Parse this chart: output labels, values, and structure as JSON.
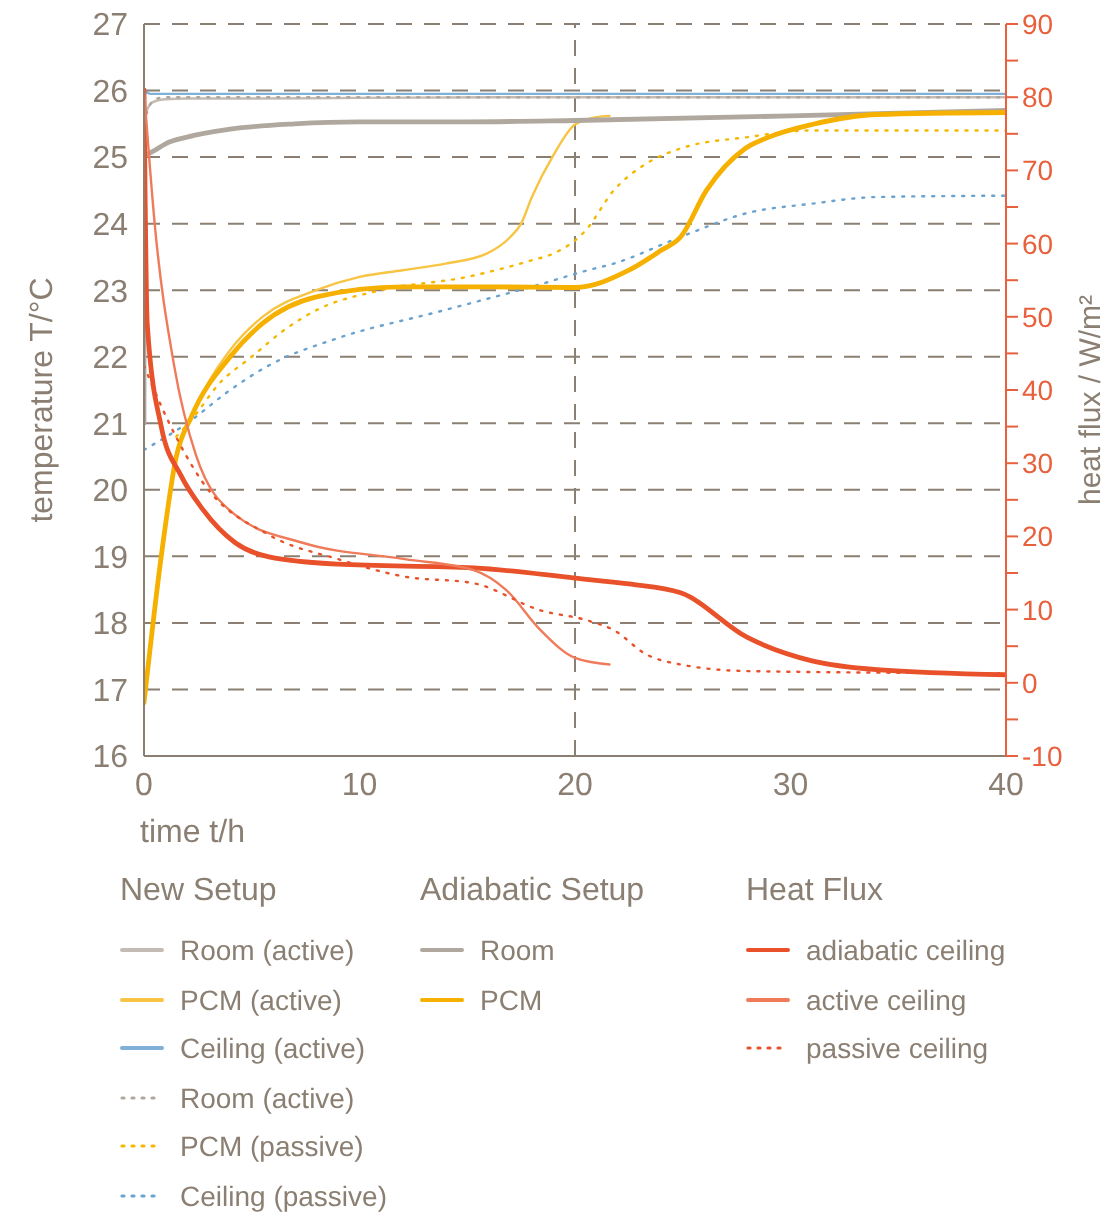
{
  "chart_data": {
    "type": "line",
    "xlabel": "time t/h",
    "ylabel": "temperature T/°C",
    "y2label": "heat flux / W/m²",
    "xlim": [
      0,
      40
    ],
    "xticks": [
      0,
      10,
      20,
      30,
      40
    ],
    "ylim": [
      16,
      27
    ],
    "yticks": [
      16,
      17,
      18,
      19,
      20,
      21,
      22,
      23,
      24,
      25,
      26,
      27
    ],
    "y2lim": [
      -10,
      90
    ],
    "y2ticks": [
      -10,
      {
        "value": -5,
        "label": null
      },
      0,
      {
        "value": 5,
        "label": null
      },
      10,
      {
        "value": 15,
        "label": null
      },
      20,
      {
        "value": 25,
        "label": null
      },
      30,
      {
        "value": 35,
        "label": null
      },
      40,
      {
        "value": 45,
        "label": null
      },
      50,
      {
        "value": 55,
        "label": null
      },
      60,
      {
        "value": 65,
        "label": null
      },
      70,
      {
        "value": 75,
        "label": null
      },
      80,
      {
        "value": 85,
        "label": null
      },
      90
    ],
    "grid": "y",
    "legend": "bottom",
    "legend_title": [
      "New Setup",
      "Adiabatic Setup",
      "Heat Flux"
    ],
    "ref_lines": [
      {
        "axis": "x",
        "value": 20,
        "color": "#8a7f72",
        "line_style": "dashed"
      }
    ],
    "series": [
      {
        "name": "Room (active)",
        "color": "#c4bcb4",
        "line_style": "solid",
        "x": [
          0,
          0.3,
          0.6,
          1,
          2,
          5,
          10,
          20,
          30,
          40
        ],
        "values": [
          25.6,
          25.8,
          25.85,
          25.87,
          25.88,
          25.88,
          25.89,
          25.9,
          25.9,
          25.9
        ]
      },
      {
        "name": "PCM (active)",
        "color": "#f7c443",
        "line_style": "solid",
        "x": [
          0,
          0.8,
          1.5,
          2.2,
          4,
          5.5,
          8,
          10,
          12,
          14,
          15.9,
          17,
          17.5,
          18,
          19,
          20,
          21,
          21.6
        ],
        "values": [
          16.8,
          19,
          20.5,
          21.1,
          22.1,
          22.6,
          23,
          23.2,
          23.3,
          23.4,
          23.55,
          23.8,
          24,
          24.4,
          25.03,
          25.49,
          25.6,
          25.62
        ]
      },
      {
        "name": "Ceiling (active)",
        "color": "#7fb0d8",
        "line_style": "solid",
        "x": [
          0,
          0.3,
          5,
          10,
          20,
          30,
          40
        ],
        "values": [
          26,
          25.95,
          25.95,
          25.95,
          25.95,
          25.95,
          25.95
        ]
      },
      {
        "name": "Room (active)",
        "color": "#b0a89f",
        "line_style": "dotted",
        "x": [
          0,
          0.3,
          0.6,
          1,
          5,
          10,
          20,
          30,
          40
        ],
        "values": [
          25.5,
          25.8,
          25.88,
          25.9,
          25.9,
          25.9,
          25.9,
          25.9,
          25.9
        ]
      },
      {
        "name": "PCM (passive)",
        "color": "#f5b800",
        "line_style": "dotted",
        "x": [
          1.5,
          2.2,
          3.5,
          5,
          6.5,
          8,
          11,
          15,
          18,
          19,
          20.5,
          21.8,
          23.3,
          24.9,
          28,
          31,
          34,
          40
        ],
        "values": [
          20.8,
          21.05,
          21.6,
          22,
          22.4,
          22.7,
          23,
          23.2,
          23.45,
          23.55,
          23.9,
          24.5,
          24.9,
          25.13,
          25.3,
          25.4,
          25.4,
          25.4
        ]
      },
      {
        "name": "Ceiling (passive)",
        "color": "#6aa3d0",
        "line_style": "dotted",
        "x": [
          0,
          2,
          4,
          5.8,
          9,
          13.7,
          18.4,
          20.6,
          21.8,
          24.9,
          28,
          31,
          34,
          40
        ],
        "values": [
          20.6,
          21,
          21.5,
          21.87,
          22.28,
          22.68,
          23.09,
          23.3,
          23.4,
          23.8,
          24.16,
          24.3,
          24.4,
          24.42
        ]
      },
      {
        "name": "Room",
        "color": "#b0a89f",
        "line_style": "solid",
        "x": [
          0,
          0,
          0.2,
          0.5,
          1,
          2,
          4,
          7,
          10,
          15,
          20,
          30,
          40
        ],
        "values": [
          21,
          25,
          25.05,
          25.1,
          25.2,
          25.3,
          25.42,
          25.5,
          25.53,
          25.53,
          25.55,
          25.62,
          25.7
        ]
      },
      {
        "name": "PCM",
        "color": "#f5b000",
        "line_style": "solid",
        "x": [
          0,
          0.8,
          1.5,
          2.2,
          4,
          5.5,
          8,
          12,
          16,
          20,
          22.5,
          24,
          24.9,
          26.1,
          27.9,
          29,
          31,
          34,
          40
        ],
        "values": [
          16.8,
          19,
          20.5,
          21.1,
          22,
          22.5,
          22.9,
          23.05,
          23.05,
          23.04,
          23.3,
          23.6,
          23.8,
          24.5,
          25.13,
          25.3,
          25.49,
          25.64,
          25.67
        ]
      },
      {
        "name": "adiabatic ceiling",
        "axis": "y2",
        "color": "#e8512a",
        "line_style": "solid",
        "x": [
          0,
          0.15,
          0.8,
          1.7,
          2.7,
          4.25,
          5.8,
          9,
          15.3,
          20,
          22.5,
          24.9,
          28,
          31,
          34,
          40
        ],
        "values": [
          81,
          49,
          35,
          28.4,
          23.8,
          19.1,
          17.2,
          16.2,
          15.7,
          14.3,
          13.5,
          12.3,
          6.2,
          3,
          1.8,
          1.1
        ]
      },
      {
        "name": "active ceiling",
        "axis": "y2",
        "color": "#ef7b5a",
        "line_style": "solid",
        "x": [
          0,
          0.5,
          1.4,
          2.4,
          4.25,
          7.4,
          12.1,
          15.3,
          16.8,
          18.4,
          20,
          21.6
        ],
        "values": [
          81,
          62.6,
          43.3,
          31.2,
          22.9,
          19.1,
          16.9,
          15.4,
          12.7,
          7.2,
          3.4,
          2.5
        ]
      },
      {
        "name": "passive ceiling",
        "axis": "y2",
        "color": "#e8512a",
        "line_style": "dotted",
        "x": [
          0,
          1.1,
          2.7,
          5.8,
          9,
          12.1,
          15.3,
          18.4,
          20.6,
          21.8,
          23.3,
          24.9,
          28,
          40
        ],
        "values": [
          43.3,
          35.9,
          27.5,
          20.2,
          16.9,
          14.5,
          13.6,
          9.9,
          8.5,
          7.2,
          3.9,
          2.5,
          1.6,
          1.3
        ]
      }
    ]
  }
}
